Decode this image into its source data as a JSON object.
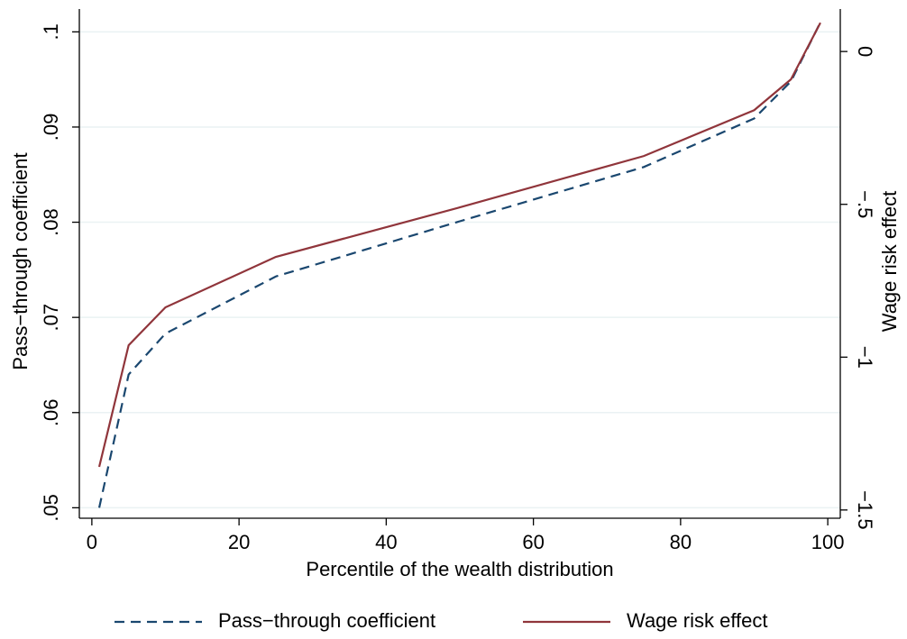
{
  "chart_data": {
    "type": "line",
    "x_label": "Percentile of the wealth distribution",
    "y_label": "Pass−through coefficient",
    "y2_label": "Wage risk effect",
    "x": [
      1,
      5,
      10,
      25,
      50,
      75,
      90,
      95,
      99
    ],
    "series": [
      {
        "name": "Pass−through coefficient",
        "color": "#1a476f",
        "dash": true,
        "values": [
          0.05,
          0.064,
          0.0683,
          0.0743,
          0.0801,
          0.0858,
          0.0909,
          0.0948,
          0.101
        ]
      },
      {
        "name": "Wage risk effect",
        "color": "#90353b",
        "axis": "y2",
        "values": [
          -1.359,
          -0.961,
          -0.837,
          -0.672,
          -0.51,
          -0.342,
          -0.192,
          -0.091,
          0.094
        ]
      }
    ],
    "xlim": [
      -1.7,
      101.7
    ],
    "xticks": [
      0,
      20,
      40,
      60,
      80,
      100
    ],
    "ylim": [
      0.0489,
      0.1024
    ],
    "yticks": [
      {
        "value": 0.05,
        "label": ".05"
      },
      {
        "value": 0.06,
        "label": ".06"
      },
      {
        "value": 0.07,
        "label": ".07"
      },
      {
        "value": 0.08,
        "label": ".08"
      },
      {
        "value": 0.09,
        "label": ".09"
      },
      {
        "value": 0.1,
        "label": ".1"
      }
    ],
    "y2lim": [
      -1.527,
      0.139
    ],
    "y2ticks": [
      {
        "value": -1.5,
        "label": "−1.5"
      },
      {
        "value": -1,
        "label": "−1"
      },
      {
        "value": -0.5,
        "label": "−.5"
      },
      0
    ],
    "grid": true,
    "grid_color": "#eaf2f3",
    "legend": "bottom"
  }
}
